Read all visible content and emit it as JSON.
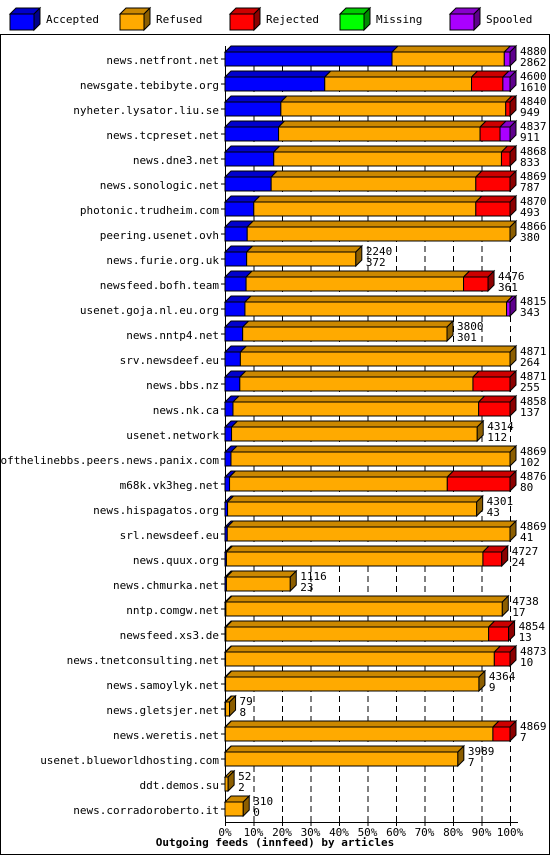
{
  "chart_data": {
    "type": "bar",
    "orientation": "horizontal",
    "stacked": true,
    "xlabel": "Outgoing feeds (innfeed) by articles",
    "xtick_labels": [
      "0%",
      "10%",
      "20%",
      "30%",
      "40%",
      "50%",
      "60%",
      "70%",
      "80%",
      "90%",
      "100%"
    ],
    "xlim": [
      0,
      100
    ],
    "legend_position": "top",
    "grid": true,
    "legend": [
      {
        "name": "Accepted",
        "color": "#0000ff"
      },
      {
        "name": "Refused",
        "color": "#ffaa00"
      },
      {
        "name": "Rejected",
        "color": "#ff0000"
      },
      {
        "name": "Missing",
        "color": "#00ff00"
      },
      {
        "name": "Spooled",
        "color": "#aa00ff"
      }
    ],
    "rows": [
      {
        "host": "news.netfront.net",
        "offered": "4880",
        "accepted": "2862",
        "pct": [
          58.6,
          39.4,
          0.0,
          0,
          2.0
        ]
      },
      {
        "host": "newsgate.tebibyte.org",
        "offered": "4600",
        "accepted": "1610",
        "pct": [
          35.0,
          51.5,
          11.0,
          0,
          2.5
        ]
      },
      {
        "host": "nyheter.lysator.liu.se",
        "offered": "4840",
        "accepted": "949",
        "pct": [
          19.6,
          78.9,
          1.5,
          0,
          0
        ]
      },
      {
        "host": "news.tcpreset.net",
        "offered": "4837",
        "accepted": "911",
        "pct": [
          18.8,
          70.7,
          7.0,
          0,
          3.5
        ]
      },
      {
        "host": "news.dne3.net",
        "offered": "4868",
        "accepted": "833",
        "pct": [
          17.1,
          79.9,
          3.0,
          0,
          0
        ]
      },
      {
        "host": "news.sonologic.net",
        "offered": "4869",
        "accepted": "787",
        "pct": [
          16.2,
          71.8,
          12.0,
          0,
          0
        ]
      },
      {
        "host": "photonic.trudheim.com",
        "offered": "4870",
        "accepted": "493",
        "pct": [
          10.1,
          77.9,
          12.0,
          0,
          0
        ]
      },
      {
        "host": "peering.usenet.ovh",
        "offered": "4866",
        "accepted": "380",
        "pct": [
          7.8,
          92.2,
          0,
          0,
          0
        ]
      },
      {
        "host": "news.furie.org.uk",
        "offered": "2240",
        "accepted": "372",
        "pct": [
          7.6,
          38.3,
          0,
          0,
          0
        ]
      },
      {
        "host": "newsfeed.bofh.team",
        "offered": "4476",
        "accepted": "361",
        "pct": [
          7.4,
          76.3,
          8.6,
          0,
          0
        ]
      },
      {
        "host": "usenet.goja.nl.eu.org",
        "offered": "4815",
        "accepted": "343",
        "pct": [
          7.0,
          91.8,
          0,
          0,
          1.2
        ]
      },
      {
        "host": "news.nntp4.net",
        "offered": "3800",
        "accepted": "301",
        "pct": [
          6.2,
          71.7,
          0,
          0,
          0
        ]
      },
      {
        "host": "srv.newsdeef.eu",
        "offered": "4871",
        "accepted": "264",
        "pct": [
          5.4,
          94.6,
          0,
          0,
          0
        ]
      },
      {
        "host": "news.bbs.nz",
        "offered": "4871",
        "accepted": "255",
        "pct": [
          5.2,
          81.8,
          13.0,
          0,
          0
        ]
      },
      {
        "host": "news.nk.ca",
        "offered": "4858",
        "accepted": "137",
        "pct": [
          2.8,
          86.2,
          11.0,
          0,
          0
        ]
      },
      {
        "host": "usenet.network",
        "offered": "4314",
        "accepted": "112",
        "pct": [
          2.3,
          86.2,
          0,
          0,
          0
        ]
      },
      {
        "host": "endofthelinebbs.peers.news.panix.com",
        "offered": "4869",
        "accepted": "102",
        "pct": [
          2.1,
          97.9,
          0,
          0,
          0
        ]
      },
      {
        "host": "m68k.vk3heg.net",
        "offered": "4876",
        "accepted": "80",
        "pct": [
          1.6,
          76.4,
          22.0,
          0,
          0
        ]
      },
      {
        "host": "news.hispagatos.org",
        "offered": "4301",
        "accepted": "43",
        "pct": [
          0.9,
          87.4,
          0,
          0,
          0
        ]
      },
      {
        "host": "srl.newsdeef.eu",
        "offered": "4869",
        "accepted": "41",
        "pct": [
          0.8,
          99.2,
          0,
          0,
          0
        ]
      },
      {
        "host": "news.quux.org",
        "offered": "4727",
        "accepted": "24",
        "pct": [
          0.5,
          90.0,
          6.6,
          0,
          0
        ]
      },
      {
        "host": "news.chmurka.net",
        "offered": "1116",
        "accepted": "23",
        "pct": [
          0.5,
          22.4,
          0,
          0,
          0
        ]
      },
      {
        "host": "nntp.comgw.net",
        "offered": "4738",
        "accepted": "17",
        "pct": [
          0.3,
          97.0,
          0,
          0,
          0
        ]
      },
      {
        "host": "newsfeed.xs3.de",
        "offered": "4854",
        "accepted": "13",
        "pct": [
          0.3,
          92.2,
          7.0,
          0,
          0
        ]
      },
      {
        "host": "news.tnetconsulting.net",
        "offered": "4873",
        "accepted": "10",
        "pct": [
          0.2,
          94.3,
          5.5,
          0,
          0
        ]
      },
      {
        "host": "news.samoylyk.net",
        "offered": "4364",
        "accepted": "9",
        "pct": [
          0.2,
          88.9,
          0,
          0,
          0
        ]
      },
      {
        "host": "news.gletsjer.net",
        "offered": "79",
        "accepted": "8",
        "pct": [
          0.2,
          1.4,
          0,
          0,
          0
        ]
      },
      {
        "host": "news.weretis.net",
        "offered": "4869",
        "accepted": "7",
        "pct": [
          0.1,
          93.9,
          6.0,
          0,
          0
        ]
      },
      {
        "host": "usenet.blueworldhosting.com",
        "offered": "3989",
        "accepted": "7",
        "pct": [
          0.1,
          81.6,
          0,
          0,
          0
        ]
      },
      {
        "host": "ddt.demos.su",
        "offered": "52",
        "accepted": "2",
        "pct": [
          0.0,
          1.1,
          0,
          0,
          0
        ]
      },
      {
        "host": "news.corradoroberto.it",
        "offered": "310",
        "accepted": "0",
        "pct": [
          0.0,
          6.4,
          0,
          0,
          0
        ]
      }
    ]
  }
}
